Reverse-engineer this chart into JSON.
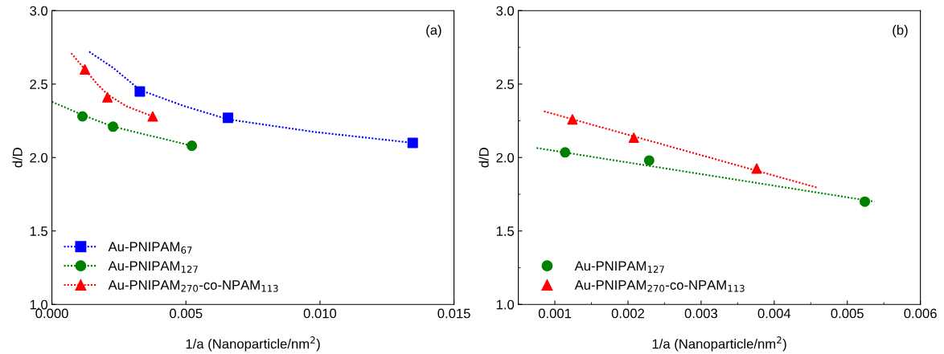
{
  "chart_data": [
    {
      "type": "scatter",
      "xlabel": "1/a (Nanoparticle/nm$^{2}$)",
      "ylabel": "d/D",
      "annotations": [
        "(a)"
      ],
      "xlim": [
        0.0,
        0.015
      ],
      "xticks": [
        {
          "value": 0.0,
          "label": "0.000"
        },
        {
          "value": 0.005,
          "label": "0.005"
        },
        {
          "value": 0.01,
          "label": "0.010"
        },
        {
          "value": 0.015,
          "label": "0.015"
        }
      ],
      "ylim": [
        1.0,
        3.0
      ],
      "yticks": [
        {
          "value": 1.0,
          "label": "1.0"
        },
        {
          "value": 1.5,
          "label": "1.5"
        },
        {
          "value": 2.0,
          "label": "2.0"
        },
        {
          "value": 2.5,
          "label": "2.5"
        },
        {
          "value": 3.0,
          "label": "3.0"
        }
      ],
      "legend": "bottom left",
      "grid": false,
      "series": [
        {
          "name": "Au-PNIPAM$_{67}$",
          "color": "#0000ff",
          "marker": "square",
          "x": [
            0.00328,
            0.00657,
            0.01346
          ],
          "values": [
            2.45,
            2.27,
            2.1
          ]
        },
        {
          "name": "Au-PNIPAM$_{127}$",
          "color": "#008000",
          "marker": "circle",
          "x": [
            0.00114,
            0.00228,
            0.00522
          ],
          "values": [
            2.28,
            2.21,
            2.08
          ]
        },
        {
          "name": "Au-PNIPAM$_{270}$-co-NPAM$_{113}$",
          "color": "#ff0000",
          "marker": "triangle",
          "x": [
            0.00123,
            0.00207,
            0.00376
          ],
          "values": [
            2.6,
            2.41,
            2.28
          ]
        },
        {
          "type": "line",
          "color": "#0000ff",
          "line_style": "dotted",
          "x": [
            0.00139,
            0.00229,
            0.00328,
            0.00494,
            0.00657,
            0.00976,
            0.01346
          ],
          "values": [
            2.72,
            2.61,
            2.46,
            2.35,
            2.26,
            2.175,
            2.1
          ]
        },
        {
          "type": "line",
          "color": "#008000",
          "line_style": "dotted",
          "x": [
            0.0,
            0.00114,
            0.00228,
            0.00522
          ],
          "values": [
            2.38,
            2.29,
            2.21,
            2.08
          ]
        },
        {
          "type": "line",
          "color": "#ff0000",
          "line_style": "dotted",
          "x": [
            0.00072,
            0.00123,
            0.00169,
            0.00207,
            0.00277,
            0.00376
          ],
          "values": [
            2.71,
            2.6,
            2.5,
            2.43,
            2.35,
            2.28
          ]
        }
      ]
    },
    {
      "type": "scatter",
      "xlabel": "1/a (Nanoparticle/nm$^{2}$)",
      "ylabel": "d/D",
      "annotations": [
        "(b)"
      ],
      "xlim": [
        0.0005,
        0.006
      ],
      "xticks": [
        0.001,
        0.002,
        0.003,
        0.004,
        0.005,
        0.006
      ],
      "ylim": [
        1.0,
        3.0
      ],
      "yticks": [
        {
          "value": 1.0,
          "label": "1.0"
        },
        {
          "value": 1.5,
          "label": "1.5"
        },
        {
          "value": 2.0,
          "label": "2.0"
        },
        {
          "value": 2.5,
          "label": "2.5"
        },
        {
          "value": 3.0,
          "label": "3.0"
        }
      ],
      "legend": "bottom left",
      "grid": false,
      "series": [
        {
          "name": "Au-PNIPAM$_{127}$",
          "color": "#008000",
          "marker": "circle",
          "x": [
            0.00114,
            0.00229,
            0.00524
          ],
          "values": [
            2.035,
            1.98,
            1.7
          ]
        },
        {
          "name": "Au-PNIPAM$_{270}$-co-NPAM$_{113}$",
          "color": "#ff0000",
          "marker": "triangle",
          "x": [
            0.00124,
            0.00208,
            0.00376
          ],
          "values": [
            2.26,
            2.135,
            1.925
          ]
        },
        {
          "type": "line",
          "color": "#008000",
          "line_style": "dotted",
          "x": [
            0.00075,
            0.00537
          ],
          "values": [
            2.065,
            1.7
          ]
        },
        {
          "type": "line",
          "color": "#ff0000",
          "line_style": "dotted",
          "x": [
            0.00085,
            0.00459
          ],
          "values": [
            2.315,
            1.795
          ]
        }
      ]
    }
  ]
}
